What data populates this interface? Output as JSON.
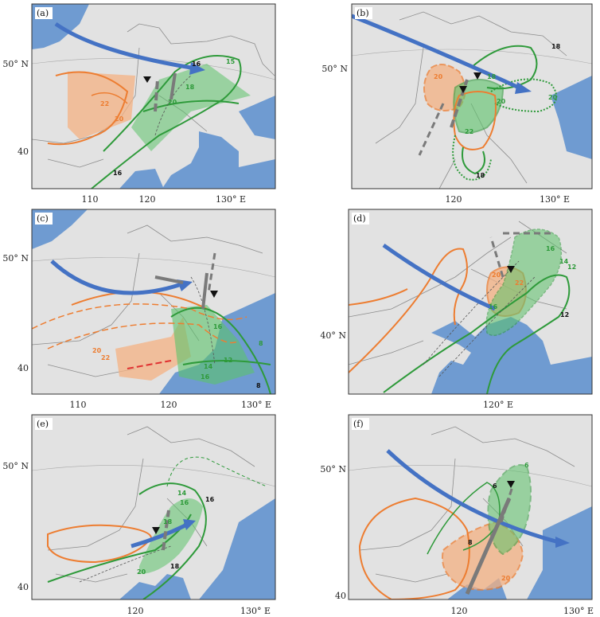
{
  "colors": {
    "land": "#e2e2e2",
    "sea": "#6f9bd1",
    "border": "#8c8c8c",
    "river": "#6f9bd1",
    "jet": "#4472c4",
    "orange": "#ed7d31",
    "green": "#2e9a3a",
    "green_fill": "#5cc36a",
    "gray_arrow": "#7a7a7a"
  },
  "panels": [
    {
      "id": "a",
      "tag": "(a)",
      "lat_labels": [
        "50° N",
        "40"
      ],
      "lon_labels": [
        "110",
        "120",
        "130° E"
      ],
      "contours": [
        "16",
        "15",
        "18",
        "20",
        "22",
        "20",
        "16"
      ]
    },
    {
      "id": "b",
      "tag": "(b)",
      "lat_labels": [
        "50° N"
      ],
      "lon_labels": [
        "120",
        "130° E"
      ],
      "contours": [
        "18",
        "20",
        "18",
        "20",
        "20",
        "22",
        "18"
      ]
    },
    {
      "id": "c",
      "tag": "(c)",
      "lat_labels": [
        "50° N",
        "40"
      ],
      "lon_labels": [
        "110",
        "120",
        "130° E"
      ],
      "contours": [
        "20",
        "22",
        "16",
        "14",
        "12",
        "16",
        "8",
        "8"
      ]
    },
    {
      "id": "d",
      "tag": "(d)",
      "lat_labels": [
        "40° N"
      ],
      "lon_labels": [
        "120° E"
      ],
      "contours": [
        "16",
        "14",
        "12",
        "20",
        "22",
        "16",
        "12"
      ]
    },
    {
      "id": "e",
      "tag": "(e)",
      "lat_labels": [
        "50° N",
        "40"
      ],
      "lon_labels": [
        "120",
        "130° E"
      ],
      "contours": [
        "14",
        "16",
        "16",
        "18",
        "20",
        "18"
      ]
    },
    {
      "id": "f",
      "tag": "(f)",
      "lat_labels": [
        "50° N",
        "40"
      ],
      "lon_labels": [
        "120",
        "130° E"
      ],
      "contours": [
        "6",
        "6",
        "8",
        "20"
      ]
    }
  ]
}
